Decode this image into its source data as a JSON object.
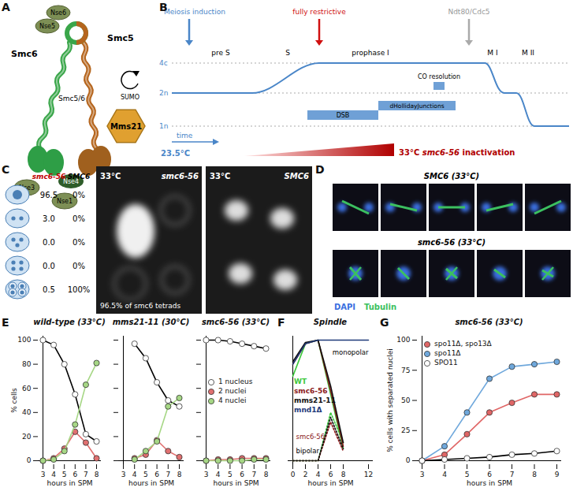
{
  "panel_labels": [
    "A",
    "B",
    "C",
    "D",
    "E",
    "F",
    "G"
  ],
  "diagram_A": {
    "labels": {
      "smc6": "Smc6",
      "nse6": "Nse6",
      "nse5": "Nse5",
      "smc5": "Smc5",
      "complex": "Smc5/6",
      "sumo": "SUMO",
      "mms21": "Mms21",
      "nse3": "Nse3",
      "nse4": "Nse4",
      "nse1": "Nse1"
    }
  },
  "timeline_B": {
    "levels": [
      "4c",
      "2n",
      "1n"
    ],
    "phases": [
      "pre S",
      "S",
      "prophase I",
      "M I",
      "M II"
    ],
    "events": {
      "induction": "Meiosis induction",
      "restrictive": "fully restrictive",
      "ndt80": "Ndt80/Cdc5"
    },
    "processes": {
      "dsb": "DSB",
      "dhj": "dHollidayJunctions",
      "co": "CO resolution"
    },
    "time": "time",
    "low_temp": "23.5°C",
    "high_temp": "33°C",
    "strain": "smc6-56",
    "inactivation": "inactivation"
  },
  "table_C": {
    "columns": [
      "smc6-56",
      "SMC6"
    ],
    "rows": [
      [
        "96.5",
        "0%"
      ],
      [
        "3.0",
        "0%"
      ],
      [
        "0.0",
        "0%"
      ],
      [
        "0.0",
        "0%"
      ],
      [
        "0.5",
        "100%"
      ]
    ],
    "images": [
      {
        "temp": "33°C",
        "strain": "smc6-56",
        "caption": "96.5% of smc6 tetrads"
      },
      {
        "temp": "33°C",
        "strain": "SMC6"
      }
    ]
  },
  "images_D": {
    "rows": [
      "SMC6 (33°C)",
      "smc6-56 (33°C)"
    ],
    "stains": [
      {
        "name": "DAPI",
        "color": "#3a6fe0"
      },
      {
        "name": "Tubulin",
        "color": "#3cc060"
      }
    ]
  },
  "chart_data": [
    {
      "type": "line",
      "title": "wild-type (33°C)",
      "x_label": "hours in SPM",
      "y_label": "% cells",
      "x": [
        3,
        4,
        5,
        6,
        7,
        8
      ],
      "xlim": [
        3,
        8
      ],
      "xticks": [
        3,
        4,
        5,
        6,
        7,
        8
      ],
      "ylim": [
        0,
        100
      ],
      "yticks": [
        0,
        20,
        40,
        60,
        80,
        100
      ],
      "marker": "circle",
      "series": [
        {
          "name": "1 nucleus",
          "color": "#ffffff",
          "values": [
            100,
            96,
            80,
            55,
            22,
            16
          ]
        },
        {
          "name": "2 nuclei",
          "color": "#e07070",
          "values": [
            0,
            2,
            10,
            24,
            15,
            2
          ]
        },
        {
          "name": "4 nuclei",
          "color": "#a6d785",
          "values": [
            0,
            1,
            8,
            30,
            63,
            81
          ]
        }
      ]
    },
    {
      "type": "line",
      "title": "mms21-11 (30°C)",
      "x_label": "hours in SPM",
      "x": [
        4,
        5,
        6,
        7,
        8
      ],
      "xlim": [
        3,
        8
      ],
      "xticks": [
        3,
        4,
        5,
        6,
        7,
        8
      ],
      "ylim": [
        0,
        100
      ],
      "yticks": [
        0,
        20,
        40,
        60,
        80,
        100
      ],
      "tick_labels": "x",
      "marker": "circle",
      "series": [
        {
          "name": "1 nucleus",
          "color": "#ffffff",
          "values": [
            97,
            85,
            65,
            50,
            45
          ]
        },
        {
          "name": "2 nuclei",
          "color": "#e07070",
          "values": [
            2,
            5,
            17,
            8,
            3
          ]
        },
        {
          "name": "4 nuclei",
          "color": "#a6d785",
          "values": [
            1,
            8,
            16,
            45,
            52
          ]
        }
      ]
    },
    {
      "type": "line",
      "title": "smc6-56 (33°C)",
      "x_label": "hours in SPM",
      "x": [
        3,
        4,
        5,
        6,
        7,
        8
      ],
      "xlim": [
        3,
        8
      ],
      "xticks": [
        3,
        4,
        5,
        6,
        7,
        8
      ],
      "ylim": [
        0,
        100
      ],
      "yticks": [
        0,
        20,
        40,
        60,
        80,
        100
      ],
      "tick_labels": "x",
      "marker": "circle",
      "legend": "center",
      "series": [
        {
          "name": "1 nucleus",
          "color": "#ffffff",
          "values": [
            100,
            100,
            99,
            97,
            95,
            93
          ]
        },
        {
          "name": "2 nuclei",
          "color": "#e07070",
          "values": [
            0,
            1,
            1,
            2,
            2,
            2
          ]
        },
        {
          "name": "4 nuclei",
          "color": "#a6d785",
          "values": [
            0,
            0,
            0,
            0,
            1,
            1
          ]
        }
      ]
    },
    {
      "type": "line",
      "title": "Spindle",
      "x_label": "hours in SPM",
      "x": [
        0,
        2,
        4,
        6,
        8,
        12
      ],
      "xlim": [
        0,
        12
      ],
      "xticks": [
        0,
        2,
        4,
        6,
        8,
        12
      ],
      "ylim": [
        0,
        100
      ],
      "yticks": [],
      "tick_labels": "x",
      "legend": "center left",
      "series": [
        {
          "name": "WT",
          "color": "#3cc83c",
          "monopolar": [
            70,
            97,
            100,
            55,
            10,
            null
          ],
          "bipolar": [
            0,
            0,
            0,
            40,
            15,
            null
          ]
        },
        {
          "name": "smc6-56",
          "color": "#8b1a1a",
          "monopolar": [
            80,
            97,
            100,
            58,
            12,
            null
          ],
          "bipolar": [
            0,
            0,
            0,
            32,
            8,
            null
          ]
        },
        {
          "name": "mms21-11",
          "color": "#111111",
          "monopolar": [
            82,
            98,
            100,
            62,
            15,
            null
          ],
          "bipolar": [
            0,
            0,
            0,
            36,
            10,
            null
          ]
        },
        {
          "name": "mnd1Δ",
          "color": "#1f3a7a",
          "monopolar": [
            80,
            97,
            100,
            100,
            100,
            100
          ]
        }
      ],
      "annotations": [
        {
          "text": "monopolar",
          "x": 12,
          "y": 90
        },
        {
          "text": "smc6-56",
          "x": 0.5,
          "y": 20,
          "color": "#8b1a1a"
        },
        {
          "text": "bipolar",
          "x": 0.5,
          "y": 8
        }
      ]
    },
    {
      "type": "line",
      "title": "smc6-56 (33°C)",
      "x_label": "hours in SPM",
      "y_label": "% cells with separated nuclei",
      "x": [
        3,
        4,
        5,
        6,
        7,
        8,
        9
      ],
      "xlim": [
        3,
        9
      ],
      "xticks": [
        3,
        4,
        5,
        6,
        7,
        8,
        9
      ],
      "ylim": [
        0,
        100
      ],
      "yticks": [
        0,
        25,
        50,
        75,
        100
      ],
      "marker": "circle",
      "legend": "upper left",
      "series": [
        {
          "name": "spo11Δ, spo13Δ",
          "color": "#e06666",
          "values": [
            0,
            5,
            22,
            40,
            48,
            55,
            55
          ]
        },
        {
          "name": "spo11Δ",
          "color": "#6fa8dc",
          "values": [
            0,
            12,
            40,
            68,
            78,
            80,
            82
          ]
        },
        {
          "name": "SPO11",
          "color": "#ffffff",
          "values": [
            0,
            1,
            2,
            3,
            5,
            6,
            8
          ]
        }
      ]
    }
  ]
}
